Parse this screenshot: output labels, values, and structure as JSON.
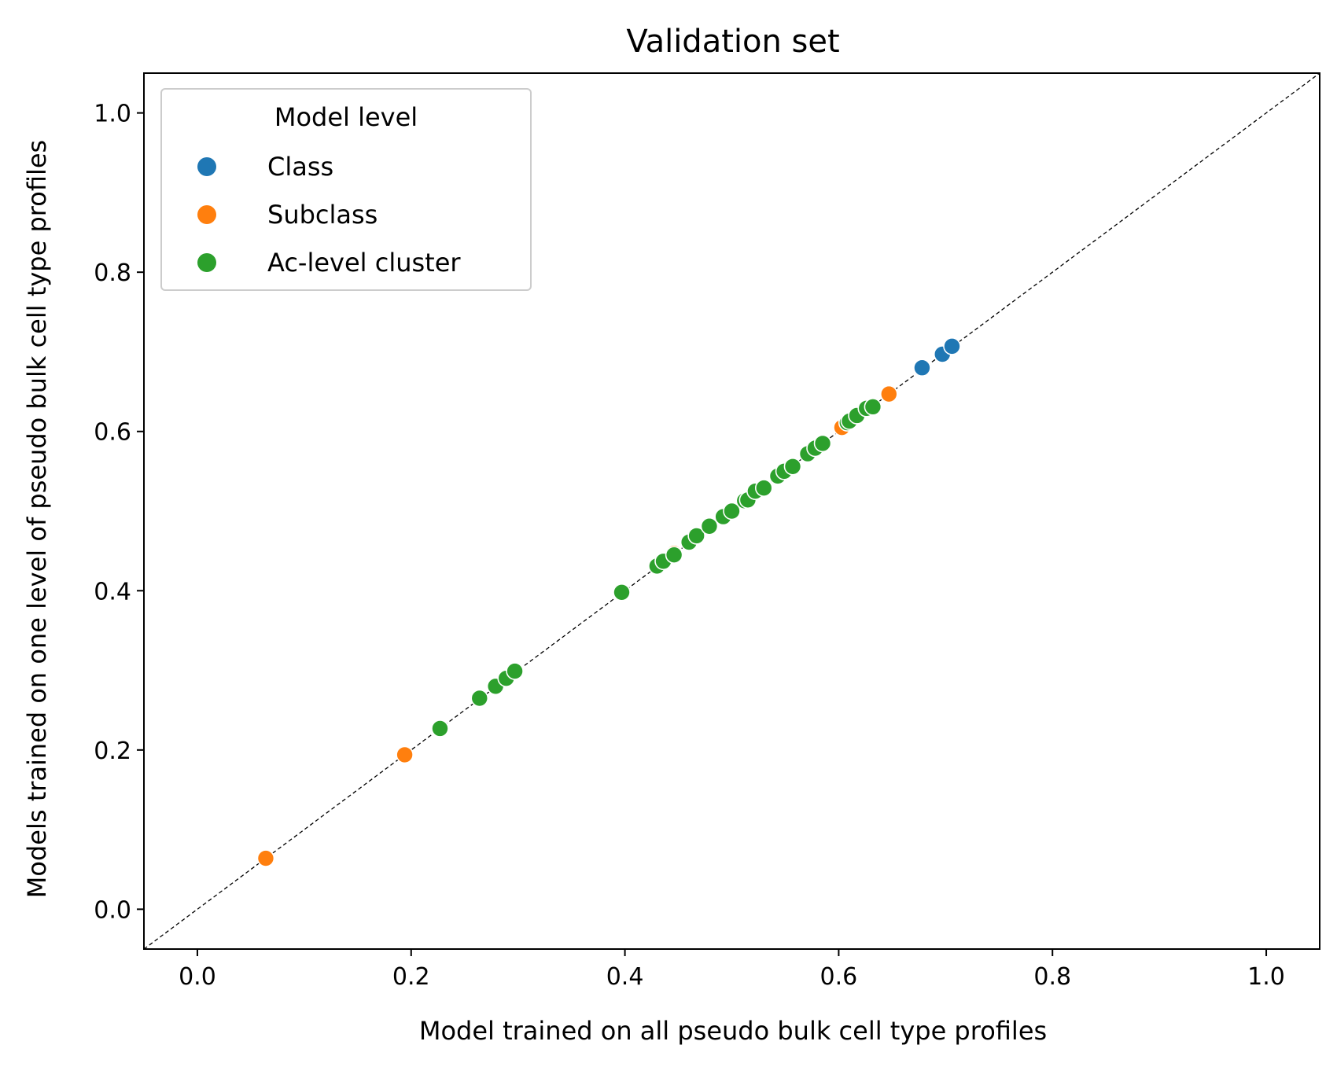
{
  "chart_data": {
    "type": "scatter",
    "title": "Validation set",
    "xlabel": "Model trained on all pseudo bulk cell type profiles",
    "ylabel": "Models trained on one level of pseudo bulk cell type profiles",
    "xlim": [
      -0.05,
      1.05
    ],
    "ylim": [
      -0.05,
      1.05
    ],
    "xticks": [
      0.0,
      0.2,
      0.4,
      0.6,
      0.8,
      1.0
    ],
    "yticks": [
      0.0,
      0.2,
      0.4,
      0.6,
      0.8,
      1.0
    ],
    "xtick_labels": [
      "0.0",
      "0.2",
      "0.4",
      "0.6",
      "0.8",
      "1.0"
    ],
    "ytick_labels": [
      "0.0",
      "0.2",
      "0.4",
      "0.6",
      "0.8",
      "1.0"
    ],
    "grid": false,
    "reference_line": "y = x (dashed black)",
    "legend": {
      "title": "Model level",
      "placement": "upper-left"
    },
    "series": [
      {
        "name": "Class",
        "color": "#1f77b4",
        "points": [
          [
            0.678,
            0.68
          ],
          [
            0.697,
            0.697
          ],
          [
            0.706,
            0.707
          ]
        ]
      },
      {
        "name": "Subclass",
        "color": "#ff7f0e",
        "points": [
          [
            0.064,
            0.064
          ],
          [
            0.194,
            0.194
          ],
          [
            0.446,
            0.447
          ],
          [
            0.603,
            0.605
          ],
          [
            0.647,
            0.647
          ]
        ]
      },
      {
        "name": "Ac-level cluster",
        "color": "#2ca02c",
        "points": [
          [
            0.227,
            0.227
          ],
          [
            0.264,
            0.265
          ],
          [
            0.279,
            0.28
          ],
          [
            0.289,
            0.29
          ],
          [
            0.297,
            0.299
          ],
          [
            0.397,
            0.398
          ],
          [
            0.43,
            0.431
          ],
          [
            0.436,
            0.437
          ],
          [
            0.446,
            0.445
          ],
          [
            0.46,
            0.461
          ],
          [
            0.467,
            0.469
          ],
          [
            0.479,
            0.481
          ],
          [
            0.492,
            0.493
          ],
          [
            0.5,
            0.5
          ],
          [
            0.512,
            0.513
          ],
          [
            0.515,
            0.514
          ],
          [
            0.522,
            0.525
          ],
          [
            0.53,
            0.529
          ],
          [
            0.543,
            0.544
          ],
          [
            0.549,
            0.55
          ],
          [
            0.557,
            0.556
          ],
          [
            0.571,
            0.572
          ],
          [
            0.578,
            0.579
          ],
          [
            0.585,
            0.585
          ],
          [
            0.608,
            0.611
          ],
          [
            0.61,
            0.613
          ],
          [
            0.617,
            0.62
          ],
          [
            0.626,
            0.629
          ],
          [
            0.632,
            0.631
          ]
        ]
      }
    ]
  }
}
